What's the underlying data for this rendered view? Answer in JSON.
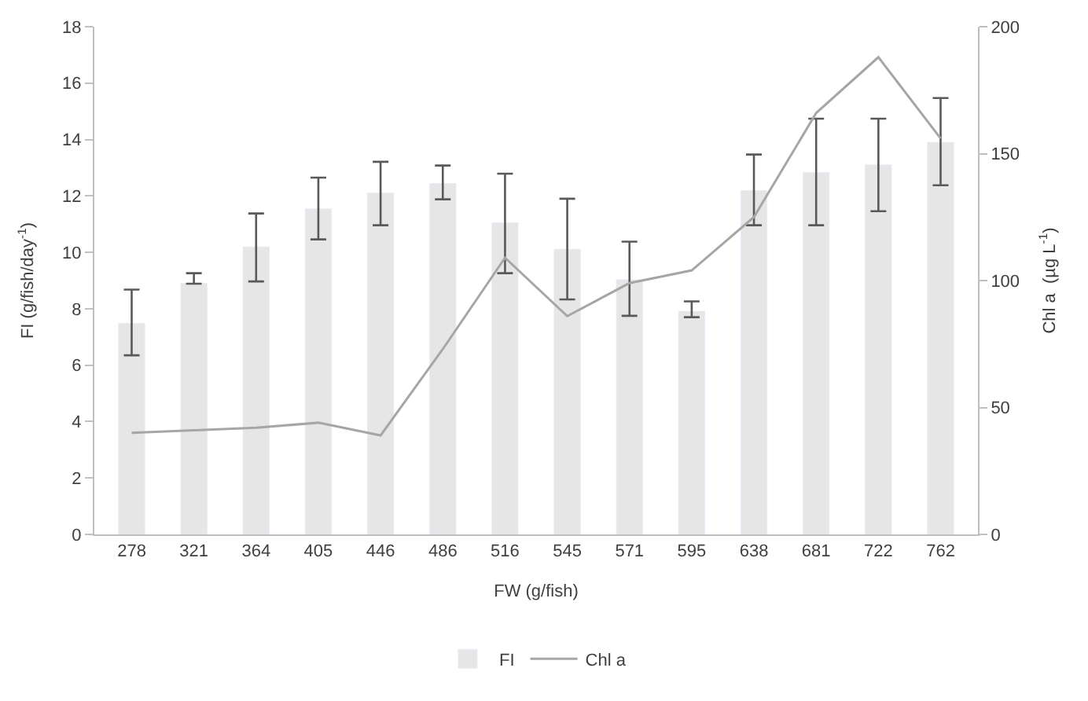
{
  "chart_data": {
    "type": "bar",
    "categories": [
      "278",
      "321",
      "364",
      "405",
      "446",
      "486",
      "516",
      "545",
      "571",
      "595",
      "638",
      "681",
      "722",
      "762"
    ],
    "xlabel": "FW (g/fish)",
    "ylabel": "FI (g/fish/day$^{-1}$)",
    "y2label": "Chl a  (µg L$^{-1}$)",
    "ylim": [
      0,
      18
    ],
    "yticks": [
      0,
      2,
      4,
      6,
      8,
      10,
      12,
      14,
      16,
      18
    ],
    "y2lim": [
      0,
      200
    ],
    "y2ticks": [
      0,
      50,
      100,
      150,
      200
    ],
    "series": [
      {
        "name": "FI",
        "color": "#e6e6e6",
        "values": [
          7.48,
          8.9,
          10.19,
          11.54,
          12.1,
          12.44,
          11.05,
          10.11,
          9.03,
          7.91,
          12.19,
          12.83,
          13.1,
          13.9
        ],
        "errors": [
          [
            6.35,
            8.68
          ],
          [
            8.89,
            9.26
          ],
          [
            8.97,
            11.38
          ],
          [
            10.46,
            12.65
          ],
          [
            10.96,
            13.21
          ],
          [
            11.88,
            13.08
          ],
          [
            9.26,
            12.79
          ],
          [
            8.33,
            11.9
          ],
          [
            7.75,
            10.38
          ],
          [
            7.7,
            8.26
          ],
          [
            10.96,
            13.47
          ],
          [
            10.96,
            14.74
          ],
          [
            11.46,
            14.74
          ],
          [
            12.38,
            15.47
          ]
        ]
      },
      {
        "name": "Chl a",
        "type": "line",
        "axis": "y2",
        "color": "#a6a6a6",
        "values": [
          40,
          41,
          42,
          44,
          39,
          73,
          109,
          86,
          99,
          104,
          125,
          166,
          188,
          156
        ]
      }
    ],
    "legend": "bottom",
    "marker": "none",
    "line_style": "solid"
  }
}
